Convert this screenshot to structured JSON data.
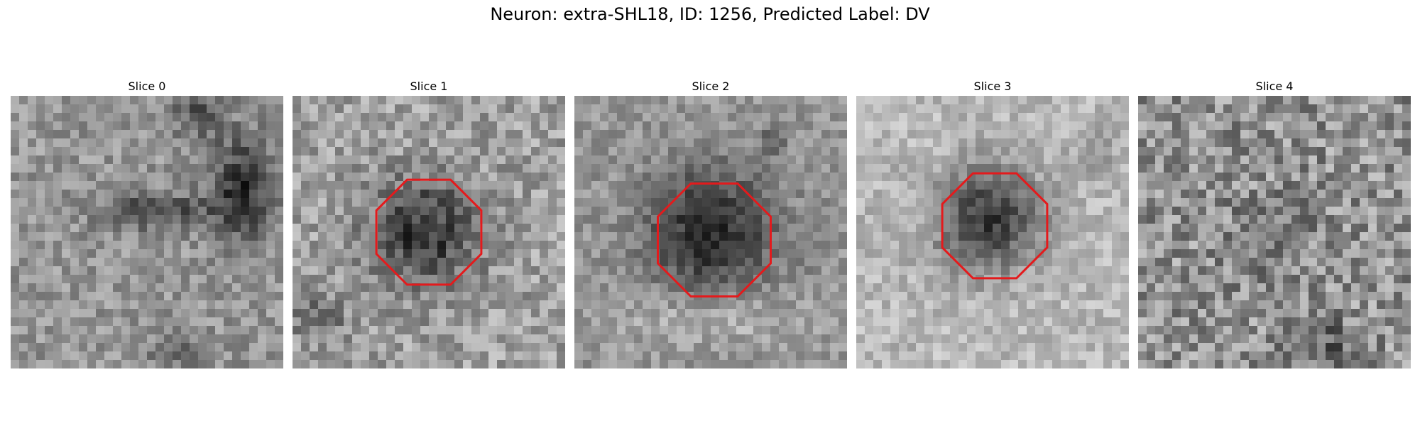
{
  "figure": {
    "title": "Neuron: extra-SHL18, ID: 1256, Predicted Label: DV"
  },
  "panels": [
    {
      "label": "Slice 0",
      "outline": false
    },
    {
      "label": "Slice 1",
      "outline": true
    },
    {
      "label": "Slice 2",
      "outline": true
    },
    {
      "label": "Slice 3",
      "outline": true
    },
    {
      "label": "Slice 4",
      "outline": false
    }
  ],
  "colors": {
    "outline": "#e41a1c",
    "background": "#ffffff"
  }
}
